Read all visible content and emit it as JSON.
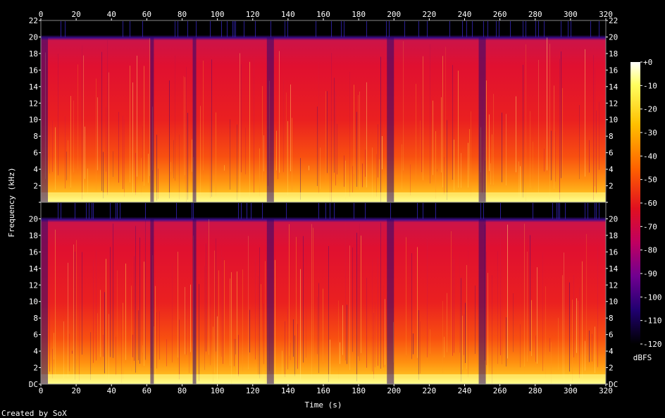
{
  "chart_data": {
    "type": "heatmap",
    "title": "",
    "xlabel": "Time (s)",
    "ylabel": "Frequency (kHz)",
    "colorbar_label": "dBFS",
    "footer": "Created by SoX",
    "xlim": [
      0,
      320
    ],
    "x_ticks": [
      0,
      20,
      40,
      60,
      80,
      100,
      120,
      140,
      160,
      180,
      200,
      220,
      240,
      260,
      280,
      300,
      320
    ],
    "ylim": [
      0,
      22
    ],
    "y_ticks_top": [
      "2",
      "4",
      "6",
      "8",
      "10",
      "12",
      "14",
      "16",
      "18",
      "20",
      "22"
    ],
    "y_ticks_bottom": [
      "DC",
      "2",
      "4",
      "6",
      "8",
      "10",
      "12",
      "14",
      "16",
      "18",
      "20"
    ],
    "y_tick_values": [
      0,
      2,
      4,
      6,
      8,
      10,
      12,
      14,
      16,
      18,
      20,
      22
    ],
    "colorbar_range": [
      -120,
      0
    ],
    "colorbar_ticks": [
      "+0",
      "-10",
      "-20",
      "-30",
      "-40",
      "-50",
      "-60",
      "-70",
      "-80",
      "-90",
      "-100",
      "-110",
      "-120"
    ],
    "channels": 2,
    "cutoff_khz": 20,
    "quiet_segments_s": [
      [
        0,
        4
      ],
      [
        62,
        64
      ],
      [
        86,
        88
      ],
      [
        128,
        132
      ],
      [
        196,
        200
      ],
      [
        248,
        252
      ]
    ],
    "colors": {
      "background": "#000000",
      "text": "#ffffff",
      "hot": "#ffff90",
      "mid": "#f06010",
      "cool": "#e01030",
      "cold": "#3a0c8a"
    }
  }
}
